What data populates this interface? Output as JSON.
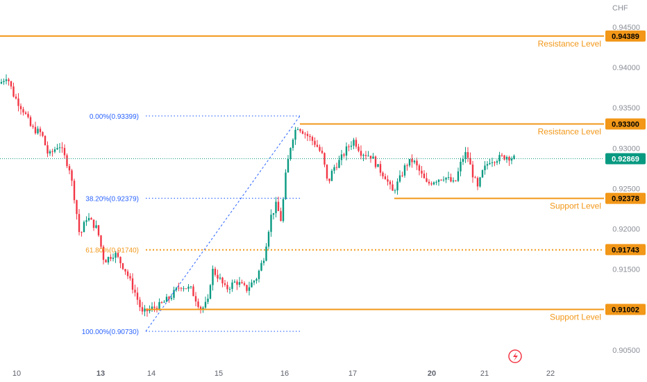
{
  "chart_data": {
    "type": "candlestick",
    "currency": "CHF",
    "y_ticks": [
      "0.94500",
      "0.94000",
      "0.93500",
      "0.93000",
      "0.92500",
      "0.92000",
      "0.91500",
      "0.91000",
      "0.90500"
    ],
    "y_tick_values": [
      0.945,
      0.94,
      0.935,
      0.93,
      0.925,
      0.92,
      0.915,
      0.91,
      0.905
    ],
    "x_ticks": [
      "10",
      "13",
      "14",
      "15",
      "16",
      "17",
      "20",
      "21",
      "22"
    ],
    "ylim": [
      0.9045,
      0.9475
    ],
    "current_price": {
      "label": "0.92869",
      "value": 0.92869,
      "color": "#089981"
    },
    "levels": [
      {
        "name": "Resistance Level",
        "tag": "0.94389",
        "value": 0.94389,
        "color": "#f29718"
      },
      {
        "name": "Resistance Level",
        "tag": "0.93300",
        "value": 0.933,
        "color": "#f29718"
      },
      {
        "name": "Support Level",
        "tag": "0.92378",
        "value": 0.92378,
        "color": "#f29718"
      },
      {
        "name": "",
        "tag": "0.91743",
        "value": 0.91743,
        "color": "#f29718",
        "style": "dotted"
      },
      {
        "name": "Support Level",
        "tag": "0.91002",
        "value": 0.91002,
        "color": "#f29718"
      }
    ],
    "fibonacci": [
      {
        "label": "0.00%(0.93399)",
        "value": 0.93399,
        "color": "#2962ff"
      },
      {
        "label": "38.20%(0.92379)",
        "value": 0.92379,
        "color": "#2962ff"
      },
      {
        "label": "61.80%(0.91740)",
        "value": 0.9174,
        "color": "#f29718"
      },
      {
        "label": "100.00%(0.90730)",
        "value": 0.9073,
        "color": "#2962ff"
      }
    ],
    "colors": {
      "up": "#089981",
      "down": "#f23645",
      "level": "#f29718",
      "fib": "#2962ff"
    },
    "grid": false,
    "watermark_icon": "lightning-icon"
  }
}
